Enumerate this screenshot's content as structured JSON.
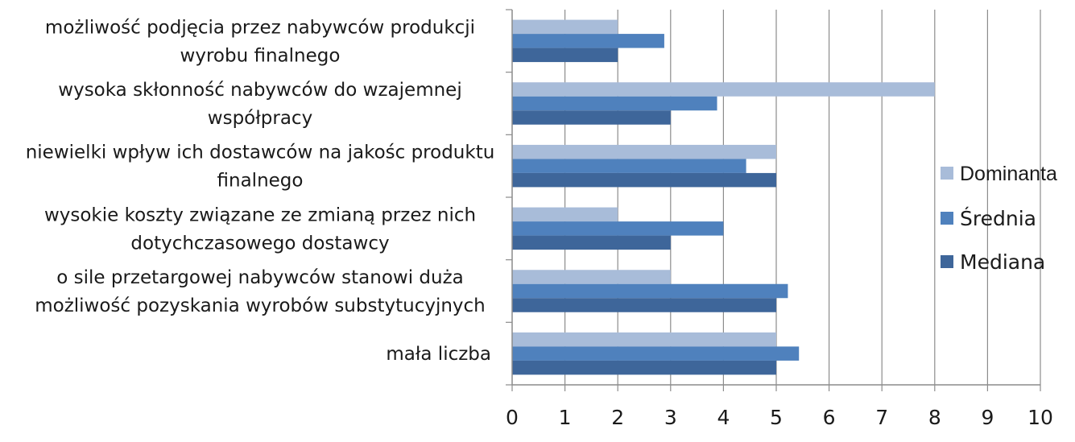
{
  "chart_data": {
    "type": "bar",
    "orientation": "horizontal",
    "categories": [
      [
        "mała liczba"
      ],
      [
        "o sile przetargowej nabywców stanowi duża",
        "możliwość pozyskania wyrobów substytucyjnych"
      ],
      [
        "wysokie koszty związane ze zmianą przez nich",
        "dotychczasowego dostawcy"
      ],
      [
        "niewielki wpływ ich dostawców na jakośc produktu",
        "finalnego"
      ],
      [
        "wysoka skłonność nabywców do wzajemnej",
        "współpracy"
      ],
      [
        "możliwość podjęcia przez nabywców produkcji",
        "wyrobu finalnego"
      ]
    ],
    "series": [
      {
        "name": "Dominanta",
        "color": "#a8bcd9",
        "values": [
          5,
          3,
          2,
          5,
          8,
          2
        ]
      },
      {
        "name": "Średnia",
        "color": "#4f81bd",
        "values": [
          5.43,
          5.22,
          4.0,
          4.43,
          3.88,
          2.88
        ]
      },
      {
        "name": "Mediana",
        "color": "#3e669a",
        "values": [
          5,
          5,
          3,
          5,
          3,
          2
        ]
      }
    ],
    "xlim": [
      0,
      10
    ],
    "xticks": [
      "0",
      "1",
      "2",
      "3",
      "4",
      "5",
      "6",
      "7",
      "8",
      "9",
      "10"
    ],
    "grid": true,
    "legend_position": "right"
  }
}
